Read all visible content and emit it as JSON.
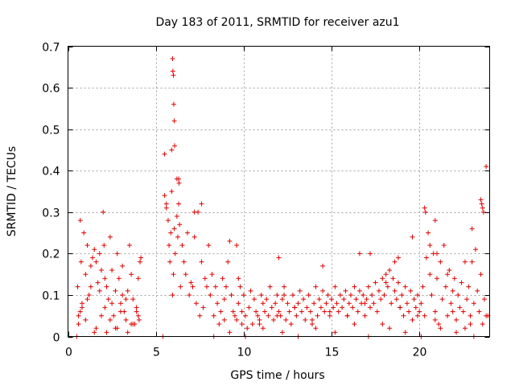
{
  "chart_data": {
    "type": "scatter",
    "title": "Day 183 of 2011, SRMTID for receiver azu1",
    "xlabel": "GPS time / hours",
    "ylabel": "SRMTID / TECUs",
    "xlim": [
      0,
      24
    ],
    "ylim": [
      0,
      0.7
    ],
    "x_ticks": [
      0,
      5,
      10,
      15,
      20
    ],
    "x_tick_labels": [
      "0",
      "5",
      "10",
      "15",
      "20"
    ],
    "y_ticks": [
      0,
      0.1,
      0.2,
      0.3,
      0.4,
      0.5,
      0.6,
      0.7
    ],
    "y_tick_labels": [
      "0",
      "0.1",
      "0.2",
      "0.3",
      "0.4",
      "0.5",
      "0.6",
      "0.7"
    ],
    "grid": true,
    "marker": "plus",
    "series_color": "#e00000",
    "series": [
      {
        "name": "SRMTID",
        "x": [
          0.5,
          0.55,
          0.6,
          0.7,
          0.75,
          0.8,
          0.9,
          1.0,
          1.1,
          1.2,
          1.3,
          1.4,
          1.5,
          1.6,
          1.7,
          1.8,
          1.9,
          2.0,
          2.05,
          2.1,
          2.2,
          2.3,
          2.4,
          2.5,
          2.6,
          2.7,
          2.8,
          2.9,
          3.0,
          3.1,
          3.2,
          3.3,
          3.4,
          3.5,
          3.6,
          3.7,
          3.8,
          3.9,
          4.0,
          4.05,
          4.1,
          4.15,
          0.6,
          0.8,
          1.0,
          1.3,
          1.6,
          1.9,
          2.2,
          2.5,
          2.8,
          3.1,
          3.4,
          3.7,
          4.0,
          0.7,
          1.1,
          1.5,
          1.8,
          2.1,
          2.4,
          2.7,
          3.0,
          3.3,
          3.6,
          3.9,
          5.4,
          5.5,
          5.6,
          5.7,
          5.75,
          5.8,
          5.85,
          5.9,
          5.95,
          6.0,
          6.05,
          6.1,
          6.2,
          6.3,
          6.35,
          6.4,
          6.5,
          6.6,
          6.7,
          6.8,
          6.9,
          7.0,
          7.1,
          7.2,
          7.3,
          7.4,
          7.5,
          7.6,
          7.7,
          7.8,
          7.9,
          8.0,
          5.95,
          5.97,
          6.0,
          6.02,
          6.05,
          6.07,
          5.9,
          6.3,
          6.32,
          5.5,
          5.6,
          6.2,
          6.25,
          7.2,
          7.6,
          8.1,
          8.2,
          8.3,
          8.4,
          8.5,
          8.6,
          8.7,
          8.8,
          8.9,
          9.0,
          9.1,
          9.2,
          9.3,
          9.4,
          9.5,
          9.6,
          9.7,
          9.8,
          9.9,
          10.0,
          10.1,
          10.2,
          10.3,
          10.4,
          10.5,
          10.6,
          10.7,
          10.8,
          10.9,
          11.0,
          11.1,
          11.2,
          11.3,
          11.4,
          11.5,
          11.6,
          11.7,
          11.8,
          11.9,
          12.0,
          12.1,
          12.2,
          12.3,
          12.4,
          12.5,
          12.6,
          12.7,
          12.8,
          12.9,
          13.0,
          13.1,
          13.2,
          13.3,
          13.4,
          13.5,
          13.6,
          13.7,
          13.8,
          13.9,
          14.0,
          14.1,
          14.2,
          14.3,
          14.4,
          14.5,
          14.6,
          14.7,
          14.8,
          14.9,
          15.0,
          15.1,
          15.2,
          15.3,
          15.4,
          15.5,
          15.6,
          15.7,
          15.8,
          15.9,
          16.0,
          16.1,
          16.2,
          16.3,
          16.4,
          16.5,
          16.6,
          16.7,
          16.8,
          16.9,
          17.0,
          17.1,
          17.2,
          17.3,
          17.4,
          17.5,
          17.6,
          17.7,
          17.8,
          17.9,
          18.0,
          18.1,
          18.2,
          18.3,
          18.4,
          18.5,
          18.6,
          18.7,
          18.8,
          18.9,
          19.0,
          19.1,
          19.2,
          19.3,
          19.4,
          19.5,
          19.6,
          19.7,
          19.8,
          19.9,
          20.0,
          20.1,
          20.2,
          20.3,
          20.4,
          20.5,
          20.6,
          20.7,
          20.8,
          20.9,
          21.0,
          21.1,
          21.2,
          21.3,
          21.4,
          21.5,
          21.6,
          21.7,
          21.8,
          21.9,
          22.0,
          22.1,
          22.2,
          22.3,
          22.4,
          22.5,
          22.6,
          22.7,
          22.8,
          22.9,
          23.0,
          23.1,
          23.2,
          23.3,
          23.4,
          23.5,
          23.6,
          23.7,
          23.8,
          9.6,
          9.7,
          12.0,
          12.3,
          14.5,
          16.6,
          17.2,
          18.1,
          18.6,
          18.8,
          19.6,
          20.3,
          20.35,
          20.6,
          20.9,
          21.0,
          21.6,
          22.6,
          23.0,
          23.5,
          23.55,
          23.6,
          23.65,
          23.8,
          8.3,
          9.2,
          10.1,
          11.1,
          12.2,
          13.1,
          14.1,
          15.2,
          16.3,
          17.1,
          18.3,
          19.2,
          20.1,
          21.2,
          22.1,
          23.1,
          8.9,
          9.9,
          10.9,
          11.9,
          12.9,
          13.9,
          14.9,
          15.9,
          16.9,
          17.9,
          18.9,
          19.9,
          20.9,
          21.9,
          22.9,
          23.9
        ],
        "y": [
          0.0,
          0.12,
          0.05,
          0.28,
          0.18,
          0.08,
          0.25,
          0.15,
          0.22,
          0.1,
          0.17,
          0.19,
          0.21,
          0.18,
          0.13,
          0.2,
          0.16,
          0.3,
          0.22,
          0.14,
          0.12,
          0.09,
          0.24,
          0.16,
          0.05,
          0.11,
          0.2,
          0.14,
          0.08,
          0.17,
          0.06,
          0.04,
          0.11,
          0.22,
          0.15,
          0.09,
          0.03,
          0.06,
          0.14,
          0.04,
          0.18,
          0.19,
          0.03,
          0.07,
          0.04,
          0.12,
          0.02,
          0.05,
          0.01,
          0.08,
          0.02,
          0.1,
          0.01,
          0.03,
          0.05,
          0.06,
          0.09,
          0.01,
          0.11,
          0.07,
          0.04,
          0.02,
          0.06,
          0.09,
          0.03,
          0.07,
          0.0,
          0.44,
          0.31,
          0.28,
          0.22,
          0.18,
          0.25,
          0.35,
          0.1,
          0.15,
          0.26,
          0.2,
          0.38,
          0.32,
          0.27,
          0.12,
          0.22,
          0.18,
          0.15,
          0.25,
          0.1,
          0.13,
          0.12,
          0.24,
          0.08,
          0.3,
          0.05,
          0.18,
          0.07,
          0.14,
          0.12,
          0.22,
          0.67,
          0.64,
          0.63,
          0.56,
          0.52,
          0.46,
          0.45,
          0.38,
          0.37,
          0.34,
          0.32,
          0.29,
          0.24,
          0.3,
          0.32,
          0.1,
          0.15,
          0.05,
          0.12,
          0.08,
          0.03,
          0.06,
          0.14,
          0.09,
          0.12,
          0.18,
          0.23,
          0.1,
          0.06,
          0.05,
          0.04,
          0.08,
          0.12,
          0.03,
          0.1,
          0.05,
          0.02,
          0.07,
          0.11,
          0.03,
          0.09,
          0.06,
          0.05,
          0.04,
          0.1,
          0.08,
          0.06,
          0.09,
          0.05,
          0.12,
          0.07,
          0.04,
          0.08,
          0.1,
          0.06,
          0.05,
          0.09,
          0.12,
          0.04,
          0.08,
          0.06,
          0.03,
          0.1,
          0.07,
          0.05,
          0.08,
          0.11,
          0.06,
          0.09,
          0.04,
          0.07,
          0.1,
          0.06,
          0.03,
          0.08,
          0.12,
          0.05,
          0.09,
          0.07,
          0.11,
          0.06,
          0.08,
          0.1,
          0.05,
          0.09,
          0.07,
          0.12,
          0.08,
          0.06,
          0.1,
          0.07,
          0.09,
          0.11,
          0.05,
          0.08,
          0.1,
          0.07,
          0.12,
          0.09,
          0.06,
          0.11,
          0.08,
          0.1,
          0.05,
          0.09,
          0.12,
          0.07,
          0.1,
          0.08,
          0.13,
          0.06,
          0.11,
          0.09,
          0.14,
          0.1,
          0.15,
          0.12,
          0.16,
          0.08,
          0.14,
          0.11,
          0.09,
          0.13,
          0.07,
          0.1,
          0.05,
          0.12,
          0.08,
          0.06,
          0.11,
          0.04,
          0.09,
          0.07,
          0.1,
          0.06,
          0.08,
          0.12,
          0.05,
          0.19,
          0.25,
          0.15,
          0.1,
          0.2,
          0.06,
          0.14,
          0.03,
          0.18,
          0.09,
          0.22,
          0.12,
          0.05,
          0.16,
          0.08,
          0.11,
          0.14,
          0.04,
          0.1,
          0.07,
          0.13,
          0.06,
          0.02,
          0.09,
          0.12,
          0.05,
          0.18,
          0.08,
          0.21,
          0.11,
          0.06,
          0.15,
          0.03,
          0.09,
          0.05,
          0.22,
          0.14,
          0.19,
          0.1,
          0.17,
          0.2,
          0.2,
          0.13,
          0.18,
          0.19,
          0.24,
          0.31,
          0.3,
          0.22,
          0.28,
          0.2,
          0.15,
          0.18,
          0.26,
          0.33,
          0.32,
          0.31,
          0.3,
          0.41,
          0.0,
          0.01,
          0.0,
          0.02,
          0.01,
          0.0,
          0.02,
          0.01,
          0.03,
          0.0,
          0.02,
          0.01,
          0.0,
          0.02,
          0.01,
          0.0,
          0.04,
          0.06,
          0.03,
          0.05,
          0.07,
          0.04,
          0.06,
          0.05,
          0.08,
          0.03,
          0.07,
          0.05,
          0.04,
          0.06,
          0.03,
          0.05
        ]
      }
    ]
  }
}
